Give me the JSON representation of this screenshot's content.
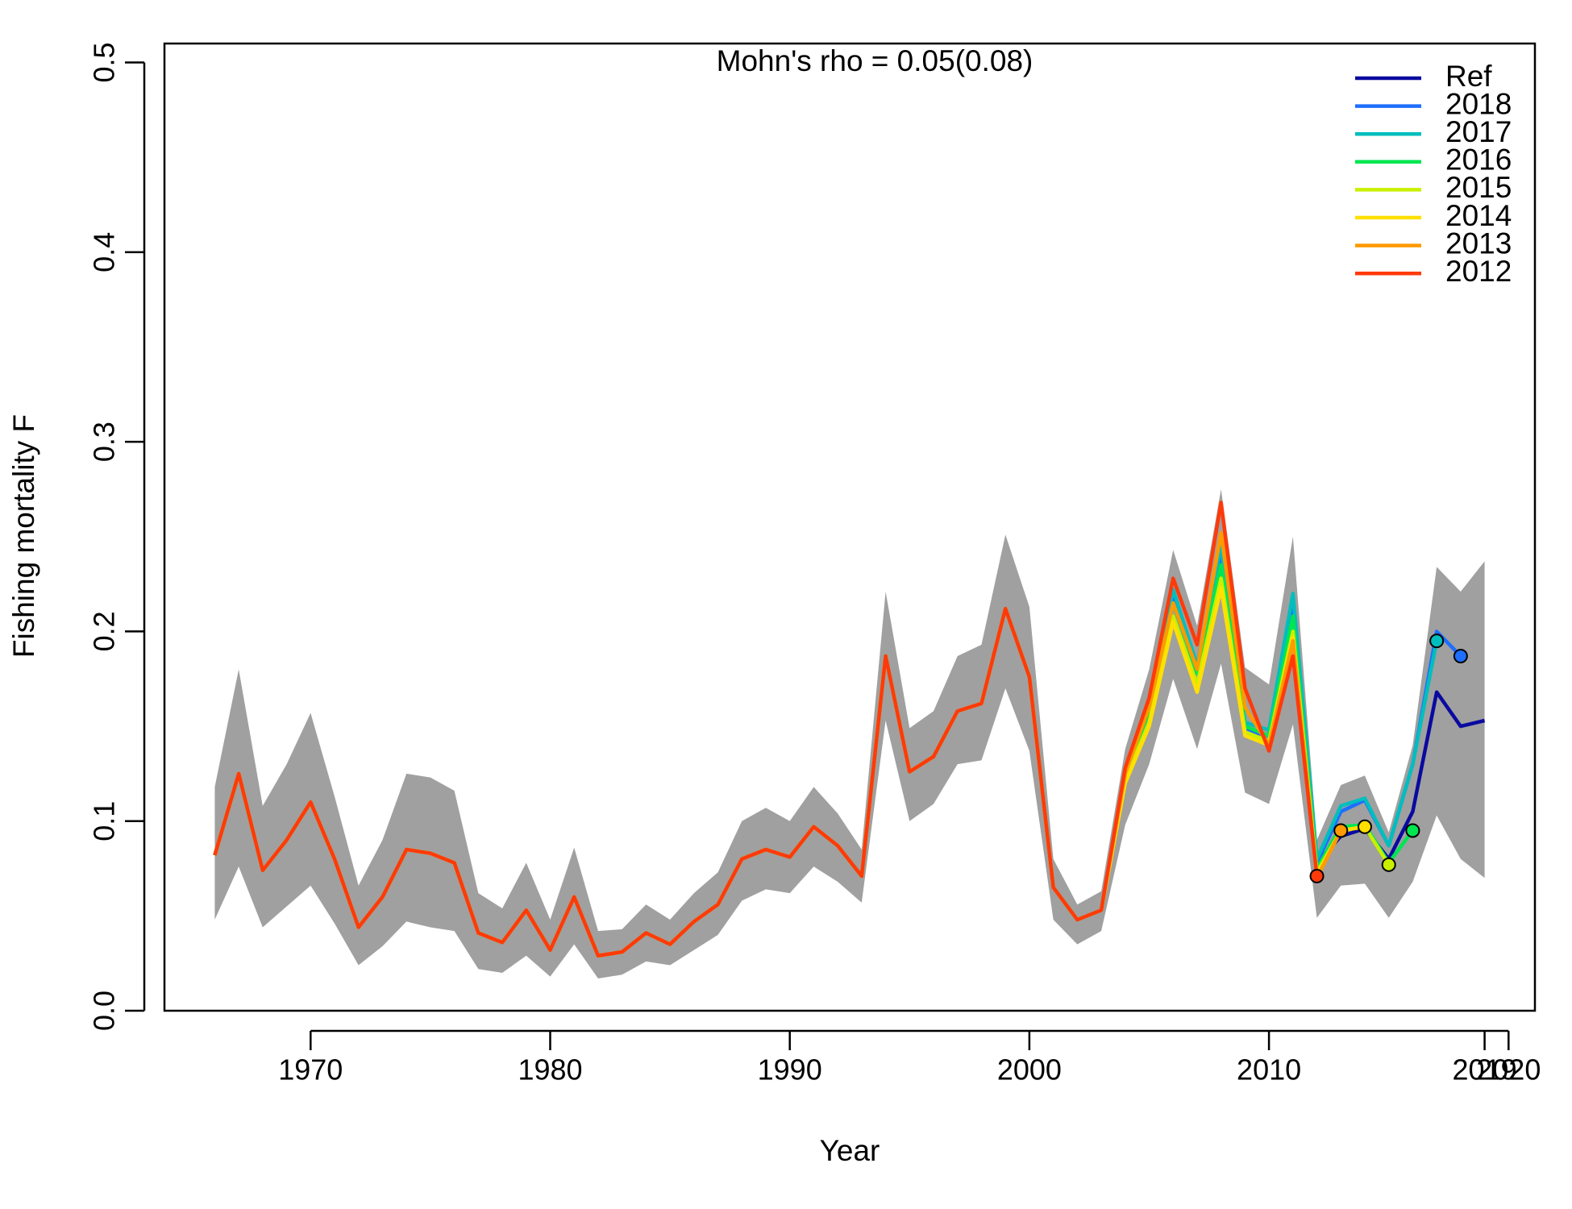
{
  "chart_data": {
    "type": "line",
    "title": "Mohn's rho = 0.05(0.08)",
    "x_label": "Year",
    "y_label": "Fishing mortality F",
    "x": [
      1966,
      1967,
      1968,
      1969,
      1970,
      1971,
      1972,
      1973,
      1974,
      1975,
      1976,
      1977,
      1978,
      1979,
      1980,
      1981,
      1982,
      1983,
      1984,
      1985,
      1986,
      1987,
      1988,
      1989,
      1990,
      1991,
      1992,
      1993,
      1994,
      1995,
      1996,
      1997,
      1998,
      1999,
      2000,
      2001,
      2002,
      2003,
      2004,
      2005,
      2006,
      2007,
      2008,
      2009,
      2010,
      2011,
      2012,
      2013,
      2014,
      2015,
      2016,
      2017,
      2018,
      2019
    ],
    "xlim": [
      1963.9,
      2021.1
    ],
    "xticks": [
      1970,
      1980,
      1990,
      2000,
      2010,
      2019,
      2020
    ],
    "ylim": [
      0,
      0.51
    ],
    "yticks": [
      {
        "value": 0,
        "label": "0.0"
      },
      0.1,
      0.2,
      0.3,
      0.4,
      0.5
    ],
    "legend": "topright",
    "band": {
      "color": "#a0a0a0",
      "lower": [
        0.048,
        0.076,
        0.044,
        0.055,
        0.066,
        0.046,
        0.024,
        0.034,
        0.047,
        0.044,
        0.042,
        0.022,
        0.02,
        0.029,
        0.018,
        0.035,
        0.017,
        0.019,
        0.026,
        0.024,
        0.032,
        0.04,
        0.058,
        0.064,
        0.062,
        0.076,
        0.068,
        0.057,
        0.153,
        0.1,
        0.109,
        0.13,
        0.132,
        0.17,
        0.137,
        0.048,
        0.035,
        0.042,
        0.098,
        0.13,
        0.175,
        0.138,
        0.183,
        0.115,
        0.109,
        0.151,
        0.049,
        0.066,
        0.067,
        0.049,
        0.068,
        0.103,
        0.08,
        0.07
      ],
      "upper": [
        0.118,
        0.18,
        0.108,
        0.13,
        0.157,
        0.113,
        0.066,
        0.09,
        0.125,
        0.123,
        0.116,
        0.062,
        0.054,
        0.078,
        0.048,
        0.086,
        0.042,
        0.043,
        0.056,
        0.048,
        0.062,
        0.073,
        0.1,
        0.107,
        0.1,
        0.118,
        0.104,
        0.085,
        0.221,
        0.149,
        0.158,
        0.187,
        0.193,
        0.251,
        0.213,
        0.08,
        0.056,
        0.063,
        0.138,
        0.18,
        0.243,
        0.203,
        0.275,
        0.181,
        0.172,
        0.25,
        0.09,
        0.119,
        0.124,
        0.094,
        0.14,
        0.234,
        0.221,
        0.237
      ]
    },
    "series": [
      {
        "name": "Ref",
        "color": "#0a0aa0",
        "values": [
          0.082,
          0.125,
          0.074,
          0.09,
          0.11,
          0.08,
          0.044,
          0.06,
          0.085,
          0.083,
          0.078,
          0.041,
          0.036,
          0.053,
          0.032,
          0.06,
          0.029,
          0.031,
          0.041,
          0.035,
          0.047,
          0.056,
          0.08,
          0.085,
          0.081,
          0.097,
          0.087,
          0.071,
          0.187,
          0.126,
          0.134,
          0.158,
          0.162,
          0.212,
          0.176,
          0.065,
          0.048,
          0.053,
          0.125,
          0.16,
          0.218,
          0.178,
          0.24,
          0.148,
          0.145,
          0.213,
          0.078,
          0.092,
          0.096,
          0.08,
          0.105,
          0.168,
          0.15,
          0.153
        ]
      },
      {
        "name": "2018",
        "color": "#1e6eff",
        "values": [
          0.082,
          0.125,
          0.074,
          0.09,
          0.11,
          0.08,
          0.044,
          0.06,
          0.085,
          0.083,
          0.078,
          0.041,
          0.036,
          0.053,
          0.032,
          0.06,
          0.029,
          0.031,
          0.041,
          0.035,
          0.047,
          0.056,
          0.08,
          0.085,
          0.081,
          0.097,
          0.087,
          0.071,
          0.187,
          0.126,
          0.134,
          0.158,
          0.162,
          0.212,
          0.176,
          0.065,
          0.048,
          0.053,
          0.125,
          0.16,
          0.218,
          0.178,
          0.24,
          0.148,
          0.145,
          0.213,
          0.078,
          0.105,
          0.111,
          0.087,
          0.13,
          0.2,
          0.187,
          null
        ]
      },
      {
        "name": "2017",
        "color": "#00bebe",
        "values": [
          0.082,
          0.125,
          0.074,
          0.09,
          0.11,
          0.08,
          0.044,
          0.06,
          0.085,
          0.083,
          0.078,
          0.041,
          0.036,
          0.053,
          0.032,
          0.06,
          0.029,
          0.031,
          0.041,
          0.035,
          0.047,
          0.056,
          0.08,
          0.085,
          0.081,
          0.097,
          0.087,
          0.071,
          0.187,
          0.126,
          0.134,
          0.158,
          0.162,
          0.212,
          0.176,
          0.065,
          0.048,
          0.053,
          0.127,
          0.163,
          0.222,
          0.182,
          0.245,
          0.152,
          0.148,
          0.22,
          0.08,
          0.108,
          0.112,
          0.087,
          0.13,
          0.195,
          null,
          null
        ]
      },
      {
        "name": "2016",
        "color": "#00e650",
        "values": [
          0.082,
          0.125,
          0.074,
          0.09,
          0.11,
          0.08,
          0.044,
          0.06,
          0.085,
          0.083,
          0.078,
          0.041,
          0.036,
          0.053,
          0.032,
          0.06,
          0.029,
          0.031,
          0.041,
          0.035,
          0.047,
          0.056,
          0.08,
          0.085,
          0.081,
          0.097,
          0.087,
          0.071,
          0.187,
          0.126,
          0.134,
          0.158,
          0.162,
          0.212,
          0.176,
          0.065,
          0.048,
          0.053,
          0.124,
          0.158,
          0.215,
          0.178,
          0.235,
          0.15,
          0.145,
          0.208,
          0.075,
          0.097,
          0.098,
          0.078,
          0.095,
          null,
          null,
          null
        ]
      },
      {
        "name": "2015",
        "color": "#c8f000",
        "values": [
          0.082,
          0.125,
          0.074,
          0.09,
          0.11,
          0.08,
          0.044,
          0.06,
          0.085,
          0.083,
          0.078,
          0.041,
          0.036,
          0.053,
          0.032,
          0.06,
          0.029,
          0.031,
          0.041,
          0.035,
          0.047,
          0.056,
          0.08,
          0.085,
          0.081,
          0.097,
          0.087,
          0.071,
          0.187,
          0.126,
          0.134,
          0.158,
          0.162,
          0.212,
          0.176,
          0.065,
          0.048,
          0.053,
          0.122,
          0.152,
          0.208,
          0.172,
          0.228,
          0.147,
          0.142,
          0.2,
          0.073,
          0.095,
          0.097,
          0.077,
          null,
          null,
          null,
          null
        ]
      },
      {
        "name": "2014",
        "color": "#ffe000",
        "values": [
          0.082,
          0.125,
          0.074,
          0.09,
          0.11,
          0.08,
          0.044,
          0.06,
          0.085,
          0.083,
          0.078,
          0.041,
          0.036,
          0.053,
          0.032,
          0.06,
          0.029,
          0.031,
          0.041,
          0.035,
          0.047,
          0.056,
          0.08,
          0.085,
          0.081,
          0.097,
          0.087,
          0.071,
          0.187,
          0.126,
          0.134,
          0.158,
          0.162,
          0.212,
          0.176,
          0.065,
          0.048,
          0.053,
          0.12,
          0.15,
          0.205,
          0.168,
          0.223,
          0.145,
          0.14,
          0.197,
          0.071,
          0.095,
          0.097,
          null,
          null,
          null,
          null,
          null
        ]
      },
      {
        "name": "2013",
        "color": "#ff9a00",
        "values": [
          0.082,
          0.125,
          0.074,
          0.09,
          0.11,
          0.08,
          0.044,
          0.06,
          0.085,
          0.083,
          0.078,
          0.041,
          0.036,
          0.053,
          0.032,
          0.06,
          0.029,
          0.031,
          0.041,
          0.035,
          0.047,
          0.056,
          0.08,
          0.085,
          0.081,
          0.097,
          0.087,
          0.071,
          0.187,
          0.126,
          0.134,
          0.158,
          0.162,
          0.212,
          0.176,
          0.065,
          0.048,
          0.053,
          0.125,
          0.16,
          0.215,
          0.18,
          0.252,
          0.16,
          0.14,
          0.195,
          0.07,
          0.095,
          null,
          null,
          null,
          null,
          null,
          null
        ]
      },
      {
        "name": "2012",
        "color": "#ff3a0a",
        "values": [
          0.082,
          0.125,
          0.074,
          0.09,
          0.11,
          0.08,
          0.044,
          0.06,
          0.085,
          0.083,
          0.078,
          0.041,
          0.036,
          0.053,
          0.032,
          0.06,
          0.029,
          0.031,
          0.041,
          0.035,
          0.047,
          0.056,
          0.08,
          0.085,
          0.081,
          0.097,
          0.087,
          0.071,
          0.187,
          0.126,
          0.134,
          0.158,
          0.162,
          0.212,
          0.176,
          0.065,
          0.048,
          0.053,
          0.128,
          0.165,
          0.228,
          0.193,
          0.268,
          0.17,
          0.137,
          0.187,
          0.071,
          null,
          null,
          null,
          null,
          null,
          null,
          null
        ]
      }
    ]
  }
}
